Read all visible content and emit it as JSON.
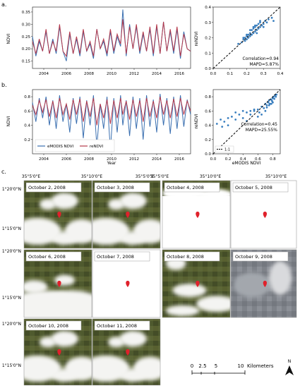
{
  "colors": {
    "emodis": "#3a6fb0",
    "rendvi": "#b5384a",
    "scatter": "#3a7fbf",
    "marker": "#e0212b"
  },
  "panel_a": {
    "label": "a.",
    "ylabel": "NDVI",
    "yticks": [
      "0.15",
      "0.20",
      "0.25",
      "0.30",
      "0.35"
    ],
    "xticks": [
      "2004",
      "2006",
      "2008",
      "2010",
      "2012",
      "2014",
      "2016"
    ],
    "scatter": {
      "ylabel": "reNDVI",
      "xticks": [
        "0.0",
        "0.1",
        "0.2",
        "0.3",
        "0.4"
      ],
      "yticks": [
        "0.0",
        "0.1",
        "0.2",
        "0.3",
        "0.4"
      ],
      "stat1": "Correlation=0.94",
      "stat2": "MAPD=5.87%"
    }
  },
  "panel_b": {
    "label": "b.",
    "ylabel": "NDVI",
    "xlabel": "Year",
    "yticks": [
      "0.2",
      "0.4",
      "0.6",
      "0.8"
    ],
    "xticks": [
      "2004",
      "2006",
      "2008",
      "2010",
      "2012",
      "2014",
      "2016"
    ],
    "legend": [
      "eMODIS NDVI",
      "reNDVI"
    ],
    "scatter": {
      "ylabel": "reNDVI",
      "xlabel": "eMODIS NDVI",
      "xticks": [
        "0.0",
        "0.2",
        "0.4",
        "0.6",
        "0.8"
      ],
      "yticks": [
        "0.0",
        "0.2",
        "0.4",
        "0.6",
        "0.8"
      ],
      "stat1": "Correlation=0.45",
      "stat2": "MAPD=25.55%",
      "legend": "1:1"
    }
  },
  "panel_c": {
    "label": "c.",
    "lon_labels": [
      "35°5'0\"E",
      "35°10'0\"E",
      "35°5'0\"E",
      "35°10'0\"E"
    ],
    "lat_labels": [
      "1°20'0\"N",
      "1°15'0\"N",
      "1°20'0\"N",
      "1°15'0\"N",
      "1°20'0\"N",
      "1°15'0\"N"
    ],
    "dates": [
      "October 2, 2008",
      "October 3, 2008",
      "October 4, 2008",
      "October 5, 2008",
      "October 6, 2008",
      "October 7, 2008",
      "October 8, 2008",
      "October 9, 2008",
      "October 10, 2008",
      "October 11, 2008"
    ],
    "scalebar": {
      "ticks": [
        "0",
        "2.5",
        "5",
        "10"
      ],
      "unit": "Kilometers"
    },
    "north": "N"
  },
  "chart_data": [
    {
      "type": "line",
      "title": "",
      "ylabel": "NDVI",
      "xlim": [
        2003,
        2017
      ],
      "ylim": [
        0.12,
        0.37
      ],
      "series": [
        {
          "name": "eMODIS NDVI",
          "x": [
            2003.0,
            2003.3,
            2003.6,
            2003.9,
            2004.2,
            2004.5,
            2004.8,
            2005.1,
            2005.4,
            2005.7,
            2006.0,
            2006.3,
            2006.6,
            2006.9,
            2007.2,
            2007.5,
            2007.8,
            2008.1,
            2008.4,
            2008.7,
            2009.0,
            2009.3,
            2009.6,
            2009.9,
            2010.2,
            2010.5,
            2010.8,
            2011.0,
            2011.3,
            2011.6,
            2011.9,
            2012.2,
            2012.5,
            2012.8,
            2013.1,
            2013.4,
            2013.7,
            2014.0,
            2014.3,
            2014.6,
            2014.9,
            2015.2,
            2015.5,
            2015.8,
            2016.1,
            2016.4,
            2016.7,
            2017.0
          ],
          "y": [
            0.25,
            0.17,
            0.23,
            0.19,
            0.27,
            0.18,
            0.24,
            0.18,
            0.29,
            0.19,
            0.15,
            0.26,
            0.18,
            0.24,
            0.17,
            0.27,
            0.19,
            0.22,
            0.16,
            0.28,
            0.2,
            0.23,
            0.17,
            0.27,
            0.18,
            0.25,
            0.21,
            0.36,
            0.17,
            0.3,
            0.2,
            0.29,
            0.18,
            0.26,
            0.19,
            0.28,
            0.17,
            0.29,
            0.18,
            0.31,
            0.19,
            0.27,
            0.18,
            0.28,
            0.16,
            0.27,
            0.2,
            0.19
          ]
        },
        {
          "name": "reNDVI",
          "x": [
            2003.0,
            2003.3,
            2003.6,
            2003.9,
            2004.2,
            2004.5,
            2004.8,
            2005.1,
            2005.4,
            2005.7,
            2006.0,
            2006.3,
            2006.6,
            2006.9,
            2007.2,
            2007.5,
            2007.8,
            2008.1,
            2008.4,
            2008.7,
            2009.0,
            2009.3,
            2009.6,
            2009.9,
            2010.2,
            2010.5,
            2010.8,
            2011.0,
            2011.3,
            2011.6,
            2011.9,
            2012.2,
            2012.5,
            2012.8,
            2013.1,
            2013.4,
            2013.7,
            2014.0,
            2014.3,
            2014.6,
            2014.9,
            2015.2,
            2015.5,
            2015.8,
            2016.1,
            2016.4,
            2016.7,
            2017.0
          ],
          "y": [
            0.23,
            0.18,
            0.24,
            0.19,
            0.28,
            0.18,
            0.23,
            0.19,
            0.3,
            0.19,
            0.17,
            0.27,
            0.18,
            0.25,
            0.18,
            0.28,
            0.19,
            0.23,
            0.17,
            0.28,
            0.2,
            0.24,
            0.18,
            0.28,
            0.19,
            0.26,
            0.22,
            0.32,
            0.18,
            0.29,
            0.2,
            0.3,
            0.19,
            0.27,
            0.19,
            0.29,
            0.18,
            0.3,
            0.18,
            0.31,
            0.19,
            0.28,
            0.19,
            0.29,
            0.17,
            0.26,
            0.2,
            0.19
          ]
        }
      ]
    },
    {
      "type": "scatter",
      "ylabel": "reNDVI",
      "xlim": [
        0,
        0.4
      ],
      "ylim": [
        0,
        0.4
      ],
      "series": [
        {
          "name": "",
          "x": [
            0.15,
            0.17,
            0.18,
            0.19,
            0.19,
            0.2,
            0.2,
            0.21,
            0.21,
            0.22,
            0.22,
            0.23,
            0.23,
            0.24,
            0.24,
            0.25,
            0.25,
            0.26,
            0.26,
            0.27,
            0.27,
            0.28,
            0.28,
            0.29,
            0.3,
            0.31,
            0.32,
            0.33,
            0.35,
            0.36,
            0.22,
            0.24,
            0.26,
            0.28,
            0.2,
            0.25,
            0.3,
            0.18
          ],
          "y": [
            0.16,
            0.17,
            0.19,
            0.18,
            0.2,
            0.21,
            0.19,
            0.22,
            0.2,
            0.23,
            0.21,
            0.22,
            0.25,
            0.23,
            0.26,
            0.24,
            0.27,
            0.25,
            0.28,
            0.26,
            0.29,
            0.27,
            0.3,
            0.28,
            0.29,
            0.31,
            0.3,
            0.32,
            0.33,
            0.31,
            0.25,
            0.27,
            0.23,
            0.31,
            0.22,
            0.28,
            0.27,
            0.2
          ]
        }
      ]
    },
    {
      "type": "line",
      "ylabel": "NDVI",
      "xlabel": "Year",
      "xlim": [
        2003,
        2017
      ],
      "ylim": [
        0.0,
        0.9
      ],
      "series": [
        {
          "name": "eMODIS NDVI",
          "x": [
            2003.0,
            2003.3,
            2003.6,
            2003.9,
            2004.2,
            2004.5,
            2004.8,
            2005.1,
            2005.4,
            2005.7,
            2006.0,
            2006.3,
            2006.6,
            2006.9,
            2007.2,
            2007.5,
            2007.8,
            2008.1,
            2008.4,
            2008.7,
            2009.0,
            2009.3,
            2009.6,
            2009.9,
            2010.2,
            2010.5,
            2010.8,
            2011.0,
            2011.3,
            2011.6,
            2011.9,
            2012.2,
            2012.5,
            2012.8,
            2013.1,
            2013.4,
            2013.7,
            2014.0,
            2014.3,
            2014.6,
            2014.9,
            2015.2,
            2015.5,
            2015.8,
            2016.1,
            2016.4,
            2016.7,
            2017.0
          ],
          "y": [
            0.72,
            0.45,
            0.78,
            0.5,
            0.8,
            0.4,
            0.75,
            0.35,
            0.82,
            0.45,
            0.7,
            0.3,
            0.78,
            0.42,
            0.8,
            0.22,
            0.75,
            0.4,
            0.82,
            0.1,
            0.7,
            0.35,
            0.8,
            0.05,
            0.78,
            0.3,
            0.82,
            0.4,
            0.75,
            0.25,
            0.8,
            0.35,
            0.78,
            0.2,
            0.82,
            0.38,
            0.76,
            0.3,
            0.84,
            0.4,
            0.78,
            0.28,
            0.8,
            0.35,
            0.82,
            0.38,
            0.76,
            0.55
          ]
        },
        {
          "name": "reNDVI",
          "x": [
            2003.0,
            2003.3,
            2003.6,
            2003.9,
            2004.2,
            2004.5,
            2004.8,
            2005.1,
            2005.4,
            2005.7,
            2006.0,
            2006.3,
            2006.6,
            2006.9,
            2007.2,
            2007.5,
            2007.8,
            2008.1,
            2008.4,
            2008.7,
            2009.0,
            2009.3,
            2009.6,
            2009.9,
            2010.2,
            2010.5,
            2010.8,
            2011.0,
            2011.3,
            2011.6,
            2011.9,
            2012.2,
            2012.5,
            2012.8,
            2013.1,
            2013.4,
            2013.7,
            2014.0,
            2014.3,
            2014.6,
            2014.9,
            2015.2,
            2015.5,
            2015.8,
            2016.1,
            2016.4,
            2016.7,
            2017.0
          ],
          "y": [
            0.68,
            0.55,
            0.75,
            0.58,
            0.76,
            0.52,
            0.74,
            0.5,
            0.78,
            0.55,
            0.7,
            0.48,
            0.76,
            0.55,
            0.77,
            0.45,
            0.74,
            0.52,
            0.78,
            0.4,
            0.7,
            0.5,
            0.76,
            0.42,
            0.75,
            0.5,
            0.78,
            0.55,
            0.74,
            0.48,
            0.76,
            0.52,
            0.75,
            0.45,
            0.78,
            0.52,
            0.74,
            0.5,
            0.8,
            0.55,
            0.75,
            0.5,
            0.77,
            0.52,
            0.78,
            0.55,
            0.74,
            0.6
          ]
        }
      ]
    },
    {
      "type": "scatter",
      "ylabel": "reNDVI",
      "xlabel": "eMODIS NDVI",
      "xlim": [
        0,
        0.9
      ],
      "ylim": [
        0,
        0.9
      ],
      "series": [
        {
          "name": "",
          "x": [
            0.05,
            0.1,
            0.15,
            0.2,
            0.25,
            0.3,
            0.35,
            0.4,
            0.45,
            0.5,
            0.55,
            0.6,
            0.62,
            0.65,
            0.68,
            0.7,
            0.72,
            0.74,
            0.75,
            0.76,
            0.78,
            0.79,
            0.8,
            0.81,
            0.82,
            0.83,
            0.84,
            0.85,
            0.7,
            0.72,
            0.75,
            0.78,
            0.8,
            0.65,
            0.6,
            0.55,
            0.5,
            0.45,
            0.4,
            0.3,
            0.2,
            0.12
          ],
          "y": [
            0.42,
            0.48,
            0.45,
            0.5,
            0.52,
            0.48,
            0.55,
            0.5,
            0.58,
            0.55,
            0.6,
            0.62,
            0.58,
            0.66,
            0.64,
            0.7,
            0.68,
            0.72,
            0.75,
            0.7,
            0.76,
            0.74,
            0.78,
            0.8,
            0.77,
            0.82,
            0.8,
            0.83,
            0.6,
            0.65,
            0.68,
            0.7,
            0.72,
            0.55,
            0.52,
            0.62,
            0.6,
            0.46,
            0.6,
            0.58,
            0.4,
            0.38
          ]
        }
      ]
    }
  ]
}
